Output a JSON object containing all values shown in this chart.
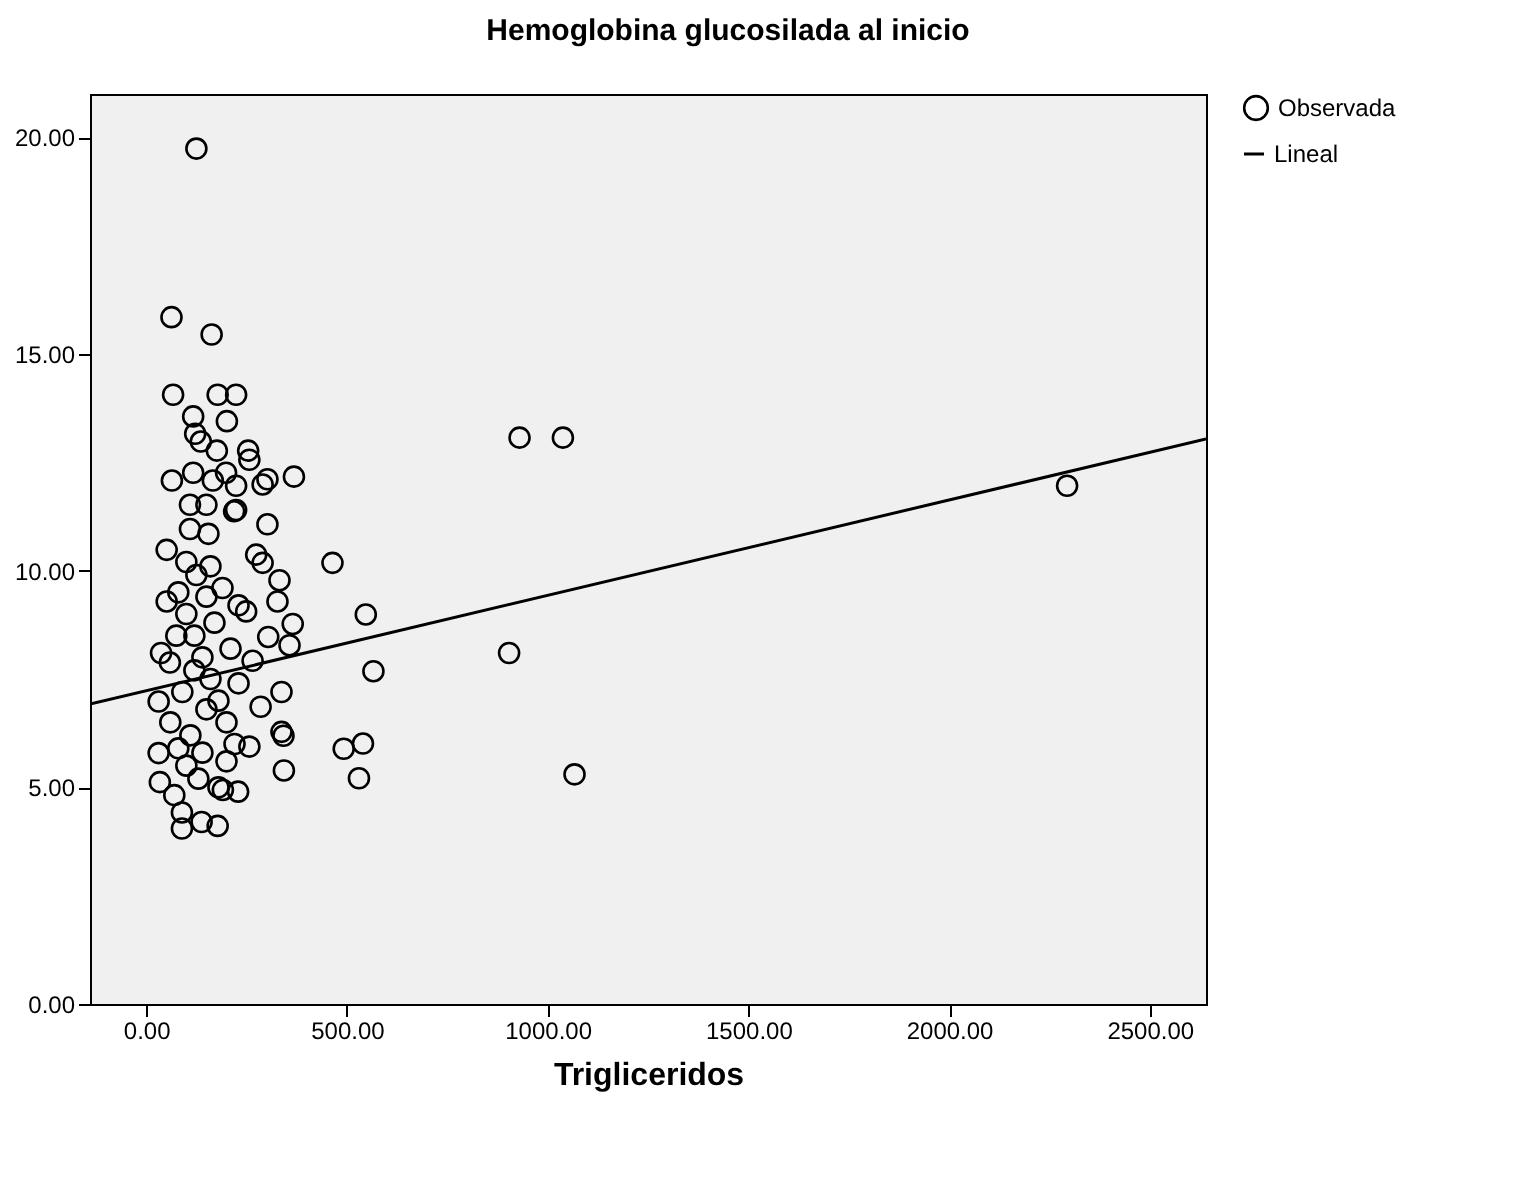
{
  "chart_data": {
    "type": "scatter",
    "title": "Hemoglobina glucosilada al inicio",
    "xlabel": "Trigliceridos",
    "legend": "top right",
    "grid": false,
    "marker": "circle",
    "xlim": [
      -140,
      2640
    ],
    "ylim": [
      0,
      21.0
    ],
    "xticks": [
      {
        "value": 0,
        "label": "0.00"
      },
      {
        "value": 500,
        "label": "500.00"
      },
      {
        "value": 1000,
        "label": "1000.00"
      },
      {
        "value": 1500,
        "label": "1500.00"
      },
      {
        "value": 2000,
        "label": "2000.00"
      },
      {
        "value": 2500,
        "label": "2500.00"
      }
    ],
    "yticks": [
      {
        "value": 0,
        "label": "0.00"
      },
      {
        "value": 5,
        "label": "5.00"
      },
      {
        "value": 10,
        "label": "10.00"
      },
      {
        "value": 15,
        "label": "15.00"
      },
      {
        "value": 20,
        "label": "20.00"
      }
    ],
    "series": [
      {
        "name": "Observada",
        "color": "#000000",
        "x": [
          125,
          63,
          163,
          67,
          178,
          224,
          117,
          201,
          122,
          136,
          176,
          254,
          257,
          930,
          1038,
          368,
          64,
          117,
          166,
          199,
          224,
          290,
          302,
          109,
          150,
          224,
          219,
          302,
          109,
          155,
          51,
          464,
          274,
          290,
          332,
          547,
          249,
          327,
          365,
          357,
          304,
          904,
          566,
          337,
          337,
          342,
          492,
          540,
          530,
          1067,
          343,
          89,
          89,
          138,
          178,
          191,
          229,
          70,
          34,
          31,
          31,
          37,
          51,
          59,
          285,
          257,
          265,
          2294,
          80,
          100,
          120,
          140,
          160,
          180,
          200,
          220,
          100,
          130,
          150,
          90,
          110,
          170,
          190,
          210,
          230,
          60,
          75,
          125,
          200,
          140,
          160,
          100,
          180,
          230,
          80,
          120,
          150
        ],
        "values": [
          19.74,
          15.85,
          15.45,
          14.06,
          14.06,
          14.06,
          13.56,
          13.45,
          13.16,
          12.98,
          12.77,
          12.77,
          12.56,
          13.07,
          13.07,
          12.17,
          12.08,
          12.26,
          12.08,
          12.26,
          11.96,
          11.99,
          12.11,
          11.52,
          11.52,
          11.4,
          11.37,
          11.07,
          10.96,
          10.85,
          10.48,
          10.18,
          10.37,
          10.18,
          9.78,
          8.99,
          9.06,
          9.29,
          8.77,
          8.28,
          8.47,
          8.1,
          7.68,
          7.2,
          6.28,
          6.19,
          5.89,
          6.01,
          5.21,
          5.3,
          5.39,
          4.42,
          4.05,
          4.2,
          4.11,
          4.94,
          4.9,
          4.82,
          5.12,
          5.79,
          6.98,
          8.1,
          9.29,
          7.88,
          6.86,
          5.94,
          7.92,
          11.96,
          9.5,
          9.0,
          8.5,
          8.0,
          7.5,
          7.0,
          6.5,
          6.0,
          5.5,
          5.2,
          6.8,
          7.2,
          6.2,
          8.8,
          9.6,
          8.2,
          7.4,
          6.5,
          8.5,
          9.9,
          5.6,
          5.8,
          10.1,
          10.2,
          5.0,
          9.2,
          5.9,
          7.7,
          9.4
        ]
      },
      {
        "name": "Lineal",
        "type": "line",
        "color": "#000000",
        "line_style": "solid",
        "marker": "none",
        "x": [
          -140,
          2640
        ],
        "values": [
          6.92,
          13.04
        ]
      }
    ]
  }
}
